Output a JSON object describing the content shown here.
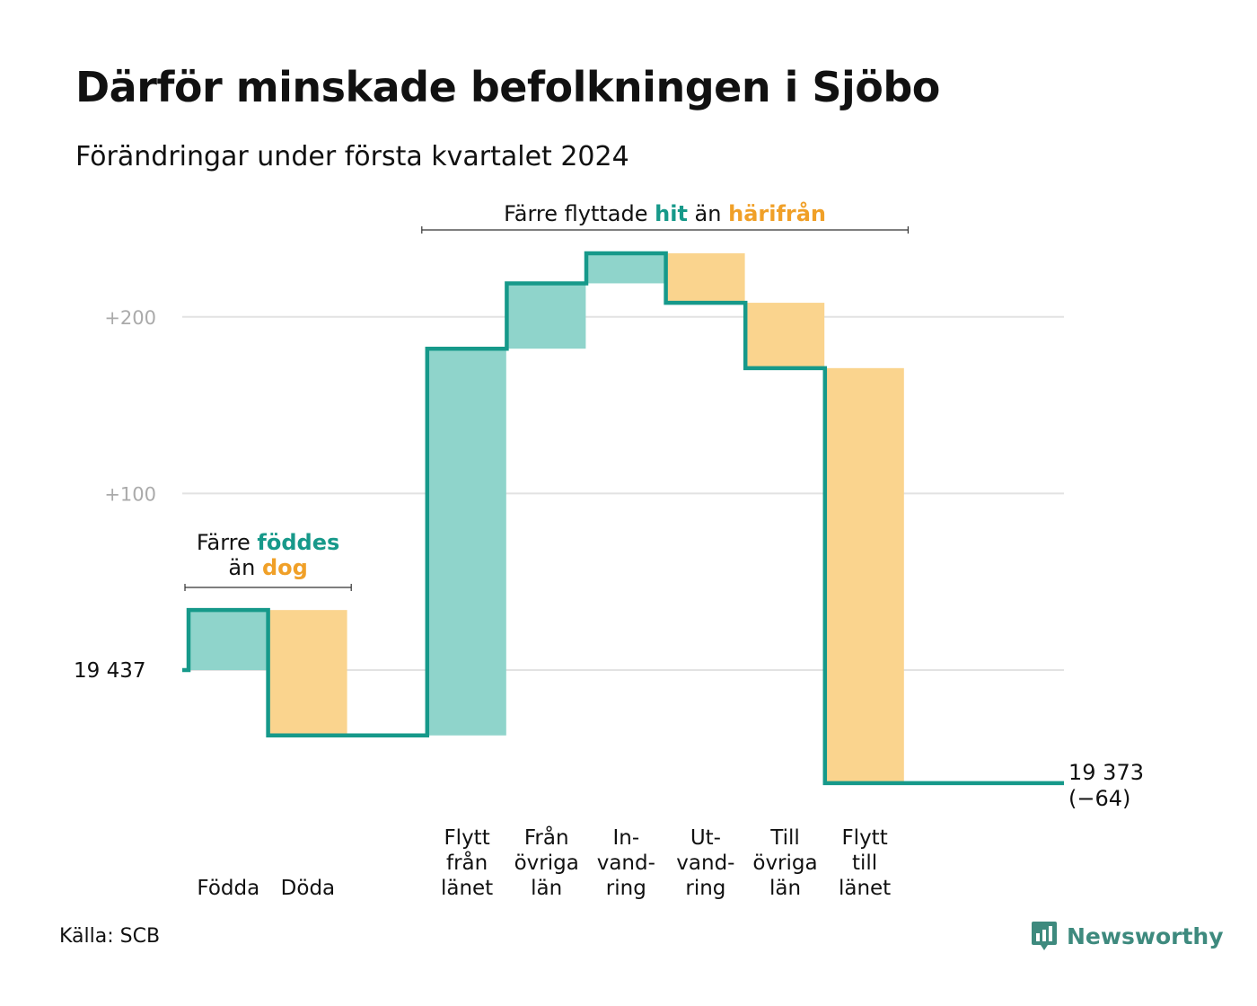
{
  "title": "Därför minskade befolkningen i Sjöbo",
  "subtitle": "Förändringar under första kvartalet 2024",
  "source": "Källa: SCB",
  "brand": "Newsworthy",
  "colors": {
    "increase": "#8fd4cb",
    "decrease": "#fad48e",
    "line": "#16998a",
    "accent_up": "#17998a",
    "accent_down": "#f0a028",
    "grid": "#e2e2e2",
    "tick": "#aaaaaa"
  },
  "chart_data": {
    "type": "waterfall",
    "title": "Därför minskade befolkningen i Sjöbo",
    "subtitle": "Förändringar under första kvartalet 2024",
    "start_value": 19437,
    "start_label": "19 437",
    "end_value": 19373,
    "end_label": "19 373",
    "change_label": "(−64)",
    "ylim": [
      -64,
      240
    ],
    "yticks": [
      {
        "value": 100,
        "label": "+100"
      },
      {
        "value": 200,
        "label": "+200"
      }
    ],
    "grid": true,
    "steps": [
      {
        "label": [
          "Födda"
        ],
        "value": 34,
        "direction": "in"
      },
      {
        "label": [
          "Döda"
        ],
        "value": -71,
        "direction": "out"
      },
      {
        "label": [],
        "value": 0,
        "direction": "none"
      },
      {
        "label": [
          "Flytt",
          "från",
          "länet"
        ],
        "value": 219,
        "direction": "in"
      },
      {
        "label": [
          "Från",
          "övriga",
          "län"
        ],
        "value": 37,
        "direction": "in"
      },
      {
        "label": [
          "In-",
          "vand-",
          "ring"
        ],
        "value": 17,
        "direction": "in"
      },
      {
        "label": [
          "Ut-",
          "vand-",
          "ring"
        ],
        "value": -28,
        "direction": "out"
      },
      {
        "label": [
          "Till",
          "övriga",
          "län"
        ],
        "value": -37,
        "direction": "out"
      },
      {
        "label": [
          "Flytt",
          "till",
          "länet"
        ],
        "value": -235,
        "direction": "out"
      }
    ],
    "annotations": [
      {
        "parts": [
          "Färre ",
          "föddes",
          "än ",
          "dog"
        ],
        "spans_steps": [
          0,
          1
        ]
      },
      {
        "parts": [
          "Färre flyttade ",
          "hit",
          " än ",
          "härifrån"
        ],
        "spans_steps": [
          3,
          8
        ]
      }
    ]
  }
}
